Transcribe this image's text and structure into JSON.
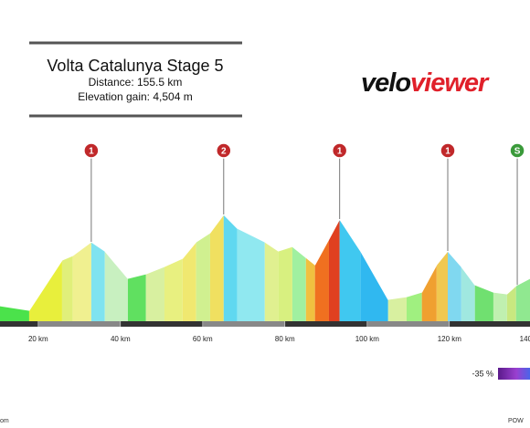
{
  "chart_data": {
    "type": "elevation",
    "title": "Volta Catalunya Stage 5",
    "subtitle": [
      "Distance: 155.5 km",
      "Elevation gain: 4,504 m"
    ],
    "logo": [
      "velo",
      "viewer"
    ],
    "x": [
      10.7,
      17.8,
      25.8,
      28.4,
      32.9,
      36.2,
      41.8,
      46.2,
      50.7,
      55.1,
      58.4,
      61.8,
      65.1,
      68.4,
      75.1,
      78.4,
      81.8,
      85.1,
      87.3,
      90.7,
      93.3,
      98.4,
      105.1,
      109.6,
      113.3,
      116.9,
      119.6,
      122.9,
      126.2,
      130.7,
      134.0,
      136.2,
      139.6
    ],
    "values": [
      204,
      144,
      804,
      864,
      1044,
      924,
      564,
      624,
      720,
      828,
      1044,
      1164,
      1404,
      1224,
      1044,
      924,
      984,
      840,
      744,
      1080,
      1344,
      924,
      288,
      324,
      384,
      744,
      924,
      720,
      480,
      384,
      360,
      468,
      564
    ],
    "segment_colors": [
      "#4be24b",
      "#e8ef3c",
      "#e0ef7a",
      "#f0f090",
      "#7fe3f0",
      "#c8f0c0",
      "#60e060",
      "#d8f0a0",
      "#e8f080",
      "#f0e870",
      "#d0f090",
      "#f0e060",
      "#60d8f0",
      "#90e8f0",
      "#e0f090",
      "#d8f080",
      "#a0f0a0",
      "#f0c040",
      "#f07020",
      "#e04020",
      "#40c8f0",
      "#30b8f0",
      "#d8f0a0",
      "#a0f080",
      "#f0a030",
      "#f0c850",
      "#80d8f0",
      "#a0e8e0",
      "#70e070",
      "#c0f0b0",
      "#c8e880",
      "#90e890"
    ],
    "xlim": [
      10.7,
      139.6
    ],
    "xticks": [
      {
        "value": 20,
        "label": "20 km"
      },
      {
        "value": 40,
        "label": "40 km"
      },
      {
        "value": 60,
        "label": "60 km"
      },
      {
        "value": 80,
        "label": "80 km"
      },
      {
        "value": 100,
        "label": "100 km"
      },
      {
        "value": 120,
        "label": "120 km"
      },
      {
        "value": 140,
        "label": "140 km"
      }
    ],
    "markers": [
      {
        "label": "1",
        "x": 32.9,
        "color": "#c0282a"
      },
      {
        "label": "2",
        "x": 65.1,
        "color": "#c0282a"
      },
      {
        "label": "1",
        "x": 93.3,
        "color": "#c0282a"
      },
      {
        "label": "1",
        "x": 119.6,
        "color": "#c0282a"
      },
      {
        "label": "S",
        "x": 136.5,
        "color": "#3a9a3a"
      }
    ],
    "legend": "-35 %",
    "footer": [
      "om",
      "POW"
    ]
  }
}
